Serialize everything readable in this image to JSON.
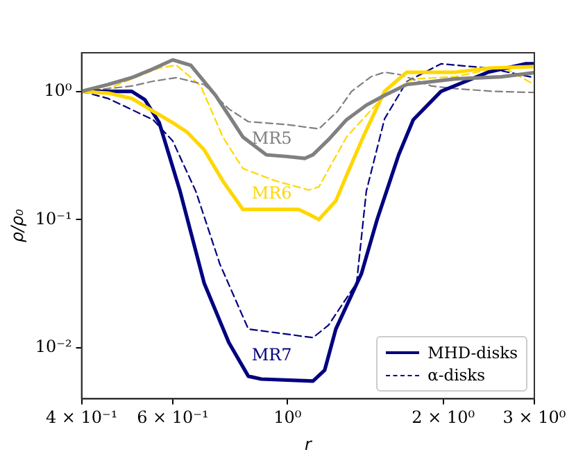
{
  "chart_data": {
    "type": "line",
    "xlabel": "r",
    "ylabel": "ρ/ρ₀",
    "log": "xy",
    "grid": false,
    "legend": "bottom right",
    "marker": "none",
    "xlim": [
      0.4,
      3
    ],
    "xticks": [
      {
        "value": 0.4,
        "label": "4 × 10⁻¹"
      },
      {
        "value": 0.6,
        "label": "6 × 10⁻¹"
      },
      {
        "value": 1,
        "label": "10⁰"
      },
      {
        "value": 2,
        "label": "2 × 10⁰"
      },
      {
        "value": 3,
        "label": "3 × 10⁰"
      }
    ],
    "ylim": [
      0.004,
      2
    ],
    "yticks": [
      {
        "value": 0.01,
        "label": "10⁻²"
      },
      {
        "value": 0.1,
        "label": "10⁻¹"
      },
      {
        "value": 1,
        "label": "10⁰"
      }
    ],
    "series": [
      {
        "color": "#808080",
        "line_style": "solid",
        "x": [
          0.4,
          0.45,
          0.5,
          0.55,
          0.6,
          0.65,
          0.726,
          0.78,
          0.82,
          0.91,
          1.0,
          1.08,
          1.12,
          1.2,
          1.3,
          1.42,
          1.54,
          1.7,
          2.11,
          2.59,
          3.0
        ],
        "values": [
          1,
          1.13,
          1.28,
          1.5,
          1.76,
          1.6,
          0.93,
          0.6,
          0.44,
          0.32,
          0.31,
          0.3,
          0.32,
          0.42,
          0.6,
          0.78,
          0.93,
          1.13,
          1.25,
          1.3,
          1.4
        ]
      },
      {
        "color": "#ffd700",
        "line_style": "solid",
        "x": [
          0.4,
          0.45,
          0.5,
          0.54,
          0.6,
          0.64,
          0.69,
          0.75,
          0.82,
          0.91,
          1.05,
          1.1,
          1.15,
          1.24,
          1.3,
          1.4,
          1.54,
          1.7,
          2.11,
          2.45,
          3.0
        ],
        "values": [
          1,
          0.97,
          0.88,
          0.73,
          0.57,
          0.48,
          0.35,
          0.2,
          0.12,
          0.12,
          0.12,
          0.11,
          0.1,
          0.14,
          0.22,
          0.44,
          1.0,
          1.41,
          1.41,
          1.52,
          1.56
        ]
      },
      {
        "name": "MHD-disks",
        "color": "#000080",
        "line_style": "solid",
        "x": [
          0.4,
          0.5,
          0.53,
          0.565,
          0.62,
          0.69,
          0.77,
          0.84,
          0.89,
          1.12,
          1.18,
          1.24,
          1.39,
          1.49,
          1.64,
          1.75,
          1.98,
          2.44,
          2.88,
          3.0
        ],
        "values": [
          1,
          1.0,
          0.86,
          0.57,
          0.166,
          0.032,
          0.011,
          0.006,
          0.0057,
          0.0055,
          0.0067,
          0.014,
          0.038,
          0.1,
          0.32,
          0.6,
          1.0,
          1.41,
          1.64,
          1.64
        ]
      },
      {
        "color": "#808080",
        "line_style": "dashed",
        "x": [
          0.4,
          0.5,
          0.55,
          0.61,
          0.69,
          0.77,
          0.84,
          1.0,
          1.15,
          1.25,
          1.33,
          1.45,
          1.54,
          1.65,
          1.9,
          2.11,
          2.5,
          3.0
        ],
        "values": [
          1,
          1.1,
          1.2,
          1.28,
          1.13,
          0.73,
          0.58,
          0.55,
          0.51,
          0.7,
          1.0,
          1.3,
          1.41,
          1.35,
          1.1,
          1.05,
          1.0,
          0.98
        ]
      },
      {
        "color": "#ffd700",
        "line_style": "dashed",
        "x": [
          0.4,
          0.45,
          0.5,
          0.565,
          0.61,
          0.68,
          0.75,
          0.82,
          0.95,
          1.1,
          1.15,
          1.3,
          1.54,
          1.75,
          2.11,
          2.6,
          3.0
        ],
        "values": [
          1,
          1.05,
          1.25,
          1.52,
          1.6,
          1.1,
          0.44,
          0.25,
          0.2,
          0.17,
          0.18,
          0.44,
          0.93,
          1.25,
          1.3,
          1.56,
          1.13
        ]
      },
      {
        "name": "α-disks",
        "color": "#000080",
        "line_style": "dashed",
        "x": [
          0.4,
          0.45,
          0.5,
          0.55,
          0.6,
          0.665,
          0.74,
          0.84,
          1.12,
          1.2,
          1.36,
          1.42,
          1.54,
          1.7,
          1.98,
          2.44,
          3.0
        ],
        "values": [
          1,
          0.88,
          0.72,
          0.6,
          0.41,
          0.166,
          0.045,
          0.014,
          0.012,
          0.015,
          0.032,
          0.166,
          0.61,
          1.19,
          1.64,
          1.52,
          1.28
        ]
      }
    ],
    "annotations": [
      "MR5",
      "MR6",
      "MR7"
    ]
  }
}
